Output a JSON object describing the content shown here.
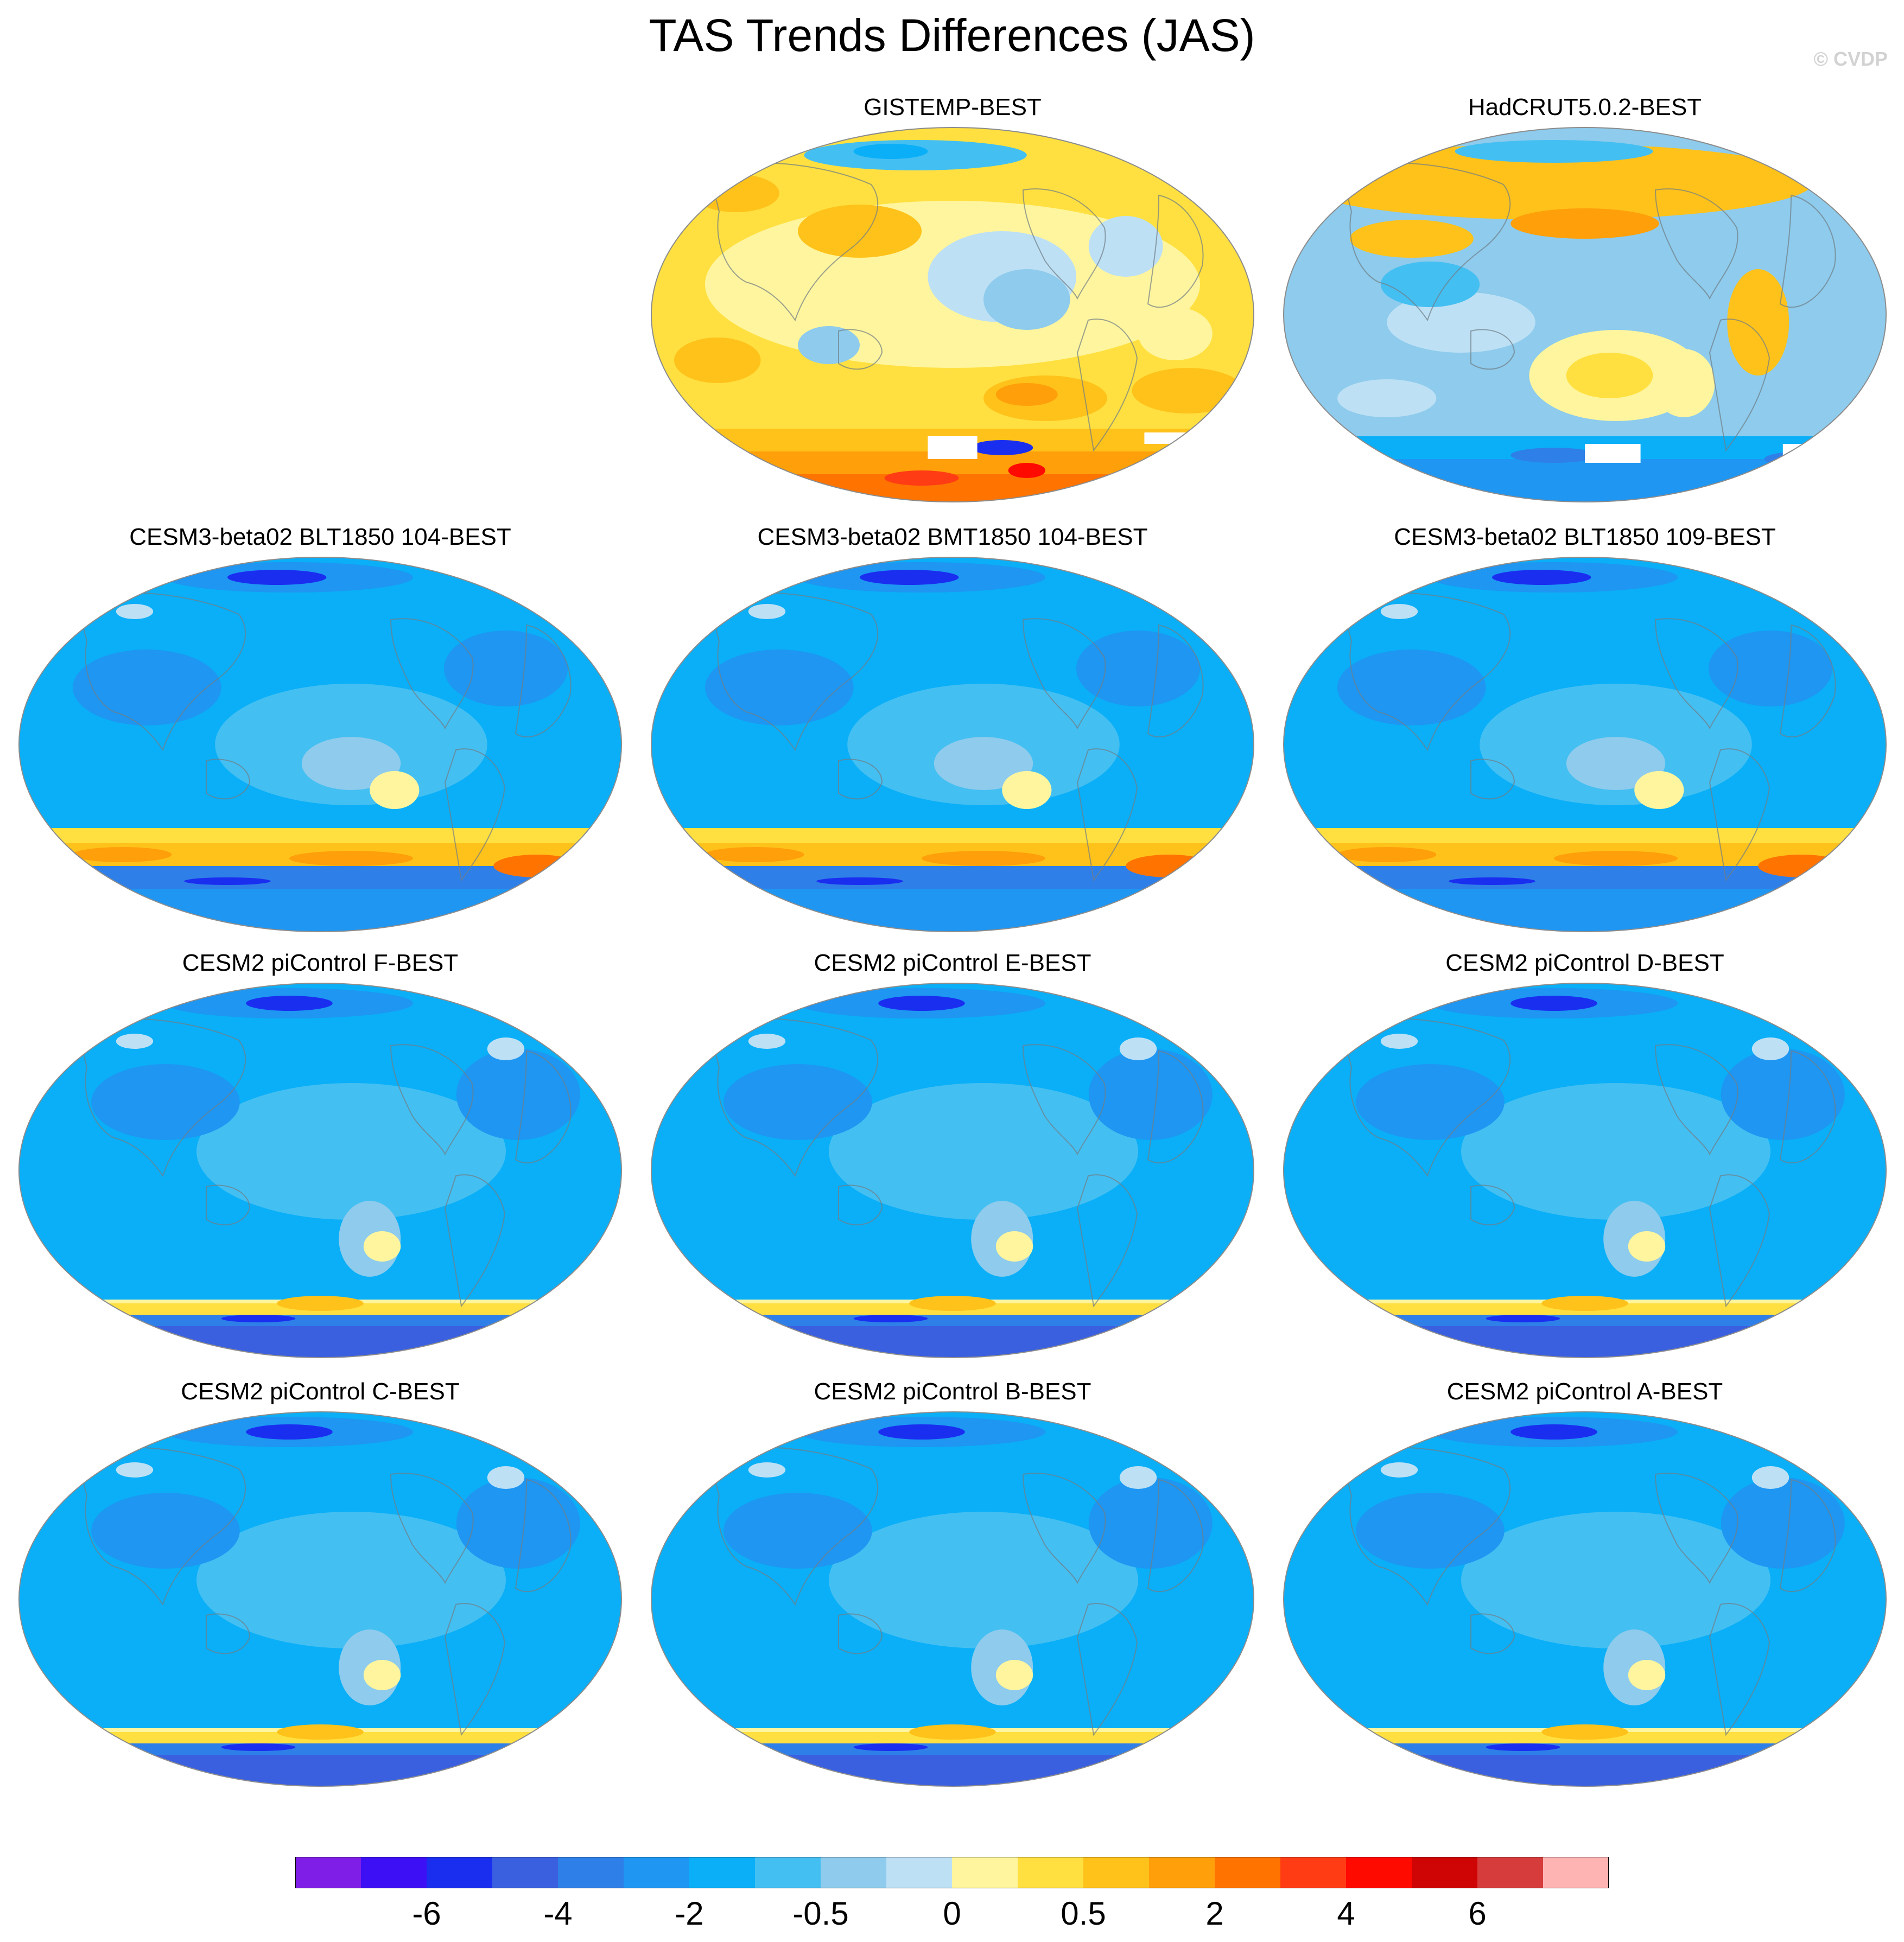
{
  "title": "TAS Trends Differences (JAS)",
  "watermark": "© CVDP",
  "colors": {
    "c0": "#7f1ee6",
    "c1": "#3d0ff5",
    "c2": "#1a2ef0",
    "c3": "#3a60e0",
    "c4": "#2f7fe8",
    "c5": "#1e96f2",
    "c6": "#0aaff7",
    "c7": "#44bff2",
    "c8": "#8ecbec",
    "c9": "#bde0f5",
    "c10": "#fff59e",
    "c11": "#ffe040",
    "c12": "#ffc21a",
    "c13": "#ff9f0a",
    "c14": "#ff7300",
    "c15": "#ff3c14",
    "c16": "#ff0a00",
    "c17": "#cf0505",
    "c18": "#d63c3c",
    "c19": "#ffb4b4",
    "coast": "#707d86",
    "rim": "#8c8c8c"
  },
  "panels": [
    {
      "title": "GISTEMP-BEST",
      "scheme": "obs-warm"
    },
    {
      "title": "HadCRUT5.0.2-BEST",
      "scheme": "obs-mixed"
    },
    {
      "title": "CESM3-beta02 BLT1850 104-BEST",
      "scheme": "model-so-warm"
    },
    {
      "title": "CESM3-beta02 BMT1850 104-BEST",
      "scheme": "model-so-warm"
    },
    {
      "title": "CESM3-beta02 BLT1850 109-BEST",
      "scheme": "model-so-warm"
    },
    {
      "title": "CESM2 piControl F-BEST",
      "scheme": "model-cool"
    },
    {
      "title": "CESM2 piControl E-BEST",
      "scheme": "model-cool"
    },
    {
      "title": "CESM2 piControl D-BEST",
      "scheme": "model-cool"
    },
    {
      "title": "CESM2 piControl C-BEST",
      "scheme": "model-cool"
    },
    {
      "title": "CESM2 piControl B-BEST",
      "scheme": "model-cool"
    },
    {
      "title": "CESM2 piControl A-BEST",
      "scheme": "model-cool"
    }
  ],
  "colorbar": {
    "colors": [
      "#7f1ee6",
      "#3d0ff5",
      "#1a2ef0",
      "#3a60e0",
      "#2f7fe8",
      "#1e96f2",
      "#0aaff7",
      "#44bff2",
      "#8ecbec",
      "#bde0f5",
      "#fff59e",
      "#ffe040",
      "#ffc21a",
      "#ff9f0a",
      "#ff7300",
      "#ff3c14",
      "#ff0a00",
      "#cf0505",
      "#d63c3c",
      "#ffb4b4"
    ],
    "labels": [
      "-6",
      "-4",
      "-2",
      "-0.5",
      "0",
      "0.5",
      "2",
      "4",
      "6"
    ]
  }
}
